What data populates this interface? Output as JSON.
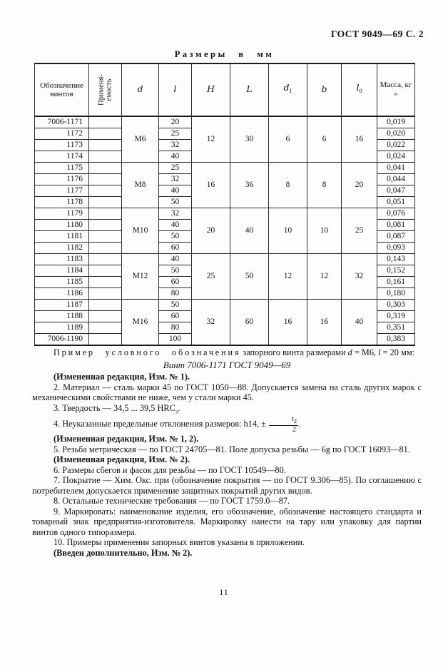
{
  "page": {
    "header": "ГОСТ 9049—69 С. 2",
    "number": "11"
  },
  "table": {
    "title": "Размеры в мм",
    "columns": [
      {
        "name": "designation",
        "lines": [
          "Обозначение",
          "винтов"
        ]
      },
      {
        "name": "applicability",
        "lines": [
          "Применя-",
          "емость"
        ],
        "rotated": true
      },
      {
        "name": "d",
        "label": "d",
        "italic": true
      },
      {
        "name": "l",
        "label": "l",
        "italic": true
      },
      {
        "name": "H",
        "label": "H",
        "italic": true
      },
      {
        "name": "L",
        "label": "L",
        "italic": true
      },
      {
        "name": "d1",
        "label": "d",
        "sub": "1",
        "italic": true
      },
      {
        "name": "b",
        "label": "b",
        "italic": true
      },
      {
        "name": "l0",
        "label": "l",
        "sub": "0",
        "italic": true
      },
      {
        "name": "mass",
        "label": "Масса, кг",
        "approx": "≈"
      }
    ],
    "groups": [
      {
        "d": "М6",
        "H": "12",
        "L": "30",
        "d1": "6",
        "b": "6",
        "l0": "16",
        "rows": [
          {
            "designation": "7006-1171",
            "l": "20",
            "mass": "0,019"
          },
          {
            "designation": "1172",
            "l": "25",
            "mass": "0,020"
          },
          {
            "designation": "1173",
            "l": "32",
            "mass": "0,022"
          },
          {
            "designation": "1174",
            "l": "40",
            "mass": "0,024"
          }
        ]
      },
      {
        "d": "М8",
        "H": "16",
        "L": "36",
        "d1": "8",
        "b": "8",
        "l0": "20",
        "rows": [
          {
            "designation": "1175",
            "l": "25",
            "mass": "0,041"
          },
          {
            "designation": "1176",
            "l": "32",
            "mass": "0,044"
          },
          {
            "designation": "1177",
            "l": "40",
            "mass": "0,047"
          },
          {
            "designation": "1178",
            "l": "50",
            "mass": "0,051"
          }
        ]
      },
      {
        "d": "М10",
        "H": "20",
        "L": "40",
        "d1": "10",
        "b": "10",
        "l0": "25",
        "rows": [
          {
            "designation": "1179",
            "l": "32",
            "mass": "0,076"
          },
          {
            "designation": "1180",
            "l": "40",
            "mass": "0,081"
          },
          {
            "designation": "1181",
            "l": "50",
            "mass": "0,087"
          },
          {
            "designation": "1182",
            "l": "60",
            "mass": "0,093"
          }
        ]
      },
      {
        "d": "М12",
        "H": "25",
        "L": "50",
        "d1": "12",
        "b": "12",
        "l0": "32",
        "rows": [
          {
            "designation": "1183",
            "l": "40",
            "mass": "0,143"
          },
          {
            "designation": "1184",
            "l": "50",
            "mass": "0,152"
          },
          {
            "designation": "1185",
            "l": "60",
            "mass": "0,161"
          },
          {
            "designation": "1186",
            "l": "80",
            "mass": "0,180"
          }
        ]
      },
      {
        "d": "М16",
        "H": "32",
        "L": "60",
        "d1": "16",
        "b": "16",
        "l0": "40",
        "rows": [
          {
            "designation": "1187",
            "l": "50",
            "mass": "0,303"
          },
          {
            "designation": "1188",
            "l": "60",
            "mass": "0,319"
          },
          {
            "designation": "1189",
            "l": "80",
            "mass": "0,351"
          },
          {
            "designation": "7006-1190",
            "l": "100",
            "mass": "0,383"
          }
        ]
      }
    ]
  },
  "notes": {
    "paragraphs": [
      {
        "style": "example",
        "name": "example-intro",
        "parts": [
          {
            "t": "spaced",
            "v": "Пример условного обозначения"
          },
          {
            "t": "plain",
            "v": "  запорного винта размерами "
          },
          {
            "t": "italic",
            "v": "d"
          },
          {
            "t": "plain",
            "v": " = М6, "
          },
          {
            "t": "italic",
            "v": "l"
          },
          {
            "t": "plain",
            "v": " = 20 мм:"
          }
        ]
      },
      {
        "style": "center",
        "name": "designation-example",
        "parts": [
          {
            "t": "plain",
            "v": "Винт 7006-1171 ГОСТ 9049—69"
          }
        ]
      },
      {
        "style": "bold",
        "name": "amendment-note",
        "parts": [
          {
            "t": "plain",
            "v": "(Измененная редакция, Изм. № 1)."
          }
        ]
      },
      {
        "style": "plain",
        "name": "note-2",
        "parts": [
          {
            "t": "plain",
            "v": "2. Материал — сталь марки 45 по ГОСТ 1050—88. Допускается замена на сталь других марок с механическими свойствами не ниже, чем у стали марки 45."
          }
        ]
      },
      {
        "style": "plain",
        "name": "note-3",
        "parts": [
          {
            "t": "plain",
            "v": "3. Твердость — 34,5 ... 39,5 HRC"
          },
          {
            "t": "sub",
            "v": "э"
          },
          {
            "t": "plain",
            "v": "."
          }
        ]
      },
      {
        "style": "plain",
        "name": "note-4",
        "parts": [
          {
            "t": "plain",
            "v": "4. Неуказанные предельные отклонения размеров: h14, ± "
          },
          {
            "t": "frac",
            "num": "t",
            "num_sub": "2",
            "den": "2"
          },
          {
            "t": "plain",
            "v": "."
          }
        ]
      },
      {
        "style": "bold",
        "name": "amendment-note",
        "parts": [
          {
            "t": "plain",
            "v": "(Измененная редакция, Изм. № 1, 2)."
          }
        ]
      },
      {
        "style": "plain",
        "name": "note-5",
        "parts": [
          {
            "t": "plain",
            "v": "5. Резьба метрическая — по ГОСТ 24705—81. Поле допуска резьбы — 6g по ГОСТ 16093—81."
          }
        ]
      },
      {
        "style": "bold",
        "name": "amendment-note",
        "parts": [
          {
            "t": "plain",
            "v": "(Измененная редакция, Изм. № 2)."
          }
        ]
      },
      {
        "style": "plain",
        "name": "note-6",
        "parts": [
          {
            "t": "plain",
            "v": "6. Размеры сбегов и фасок для резьбы — по ГОСТ 10549—80."
          }
        ]
      },
      {
        "style": "plain",
        "name": "note-7",
        "parts": [
          {
            "t": "plain",
            "v": "7. Покрытие — Хим. Окс. прм (обозначение покрытия — по ГОСТ 9.306—85). По соглашению с потребителем допускается применение защитных покрытий других видов."
          }
        ]
      },
      {
        "style": "plain",
        "name": "note-8",
        "parts": [
          {
            "t": "plain",
            "v": "8. Остальные технические требования — по ГОСТ 1759.0—87."
          }
        ]
      },
      {
        "style": "plain",
        "name": "note-9",
        "parts": [
          {
            "t": "plain",
            "v": "9. Маркировать: наименование изделия, его обозначение, обозначение настоящего стандарта и товарный знак предприятия-изготовителя. Маркировку нанести на тару или упаковку для партии винтов одного типоразмера."
          }
        ]
      },
      {
        "style": "plain",
        "name": "note-10",
        "parts": [
          {
            "t": "plain",
            "v": "10. Примеры применения запорных винтов указаны в приложении."
          }
        ]
      },
      {
        "style": "bold",
        "name": "amendment-note",
        "parts": [
          {
            "t": "plain",
            "v": "(Введен дополнительно, Изм. № 2)."
          }
        ]
      }
    ]
  }
}
